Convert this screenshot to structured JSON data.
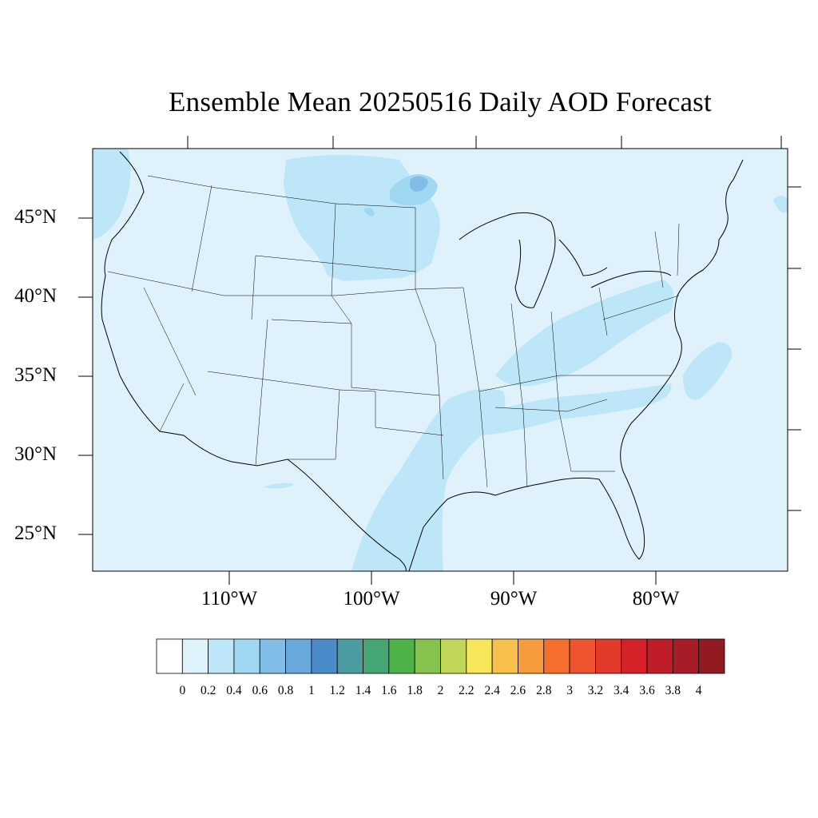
{
  "title": "Ensemble Mean 20250516 Daily AOD Forecast",
  "map": {
    "projection": "lambert-conformal",
    "region": "CONUS",
    "background_color": "#dff2fb",
    "lat_labels": [
      "45°N",
      "40°N",
      "35°N",
      "30°N",
      "25°N"
    ],
    "lon_labels": [
      "110°W",
      "100°W",
      "90°W",
      "80°W"
    ],
    "aod_features": [
      {
        "name": "northern-plains-plume",
        "level": "0.2-0.4"
      },
      {
        "name": "upper-midwest-peak",
        "level": "0.6-0.8"
      },
      {
        "name": "ohio-valley-band",
        "level": "0.2-0.4"
      },
      {
        "name": "south-central-band",
        "level": "0.2-0.4"
      },
      {
        "name": "carolina-offshore",
        "level": "0.2-0.4"
      },
      {
        "name": "pacific-northwest-coast",
        "level": "0.2-0.4"
      }
    ]
  },
  "colorbar": {
    "levels": [
      "0",
      "0.2",
      "0.4",
      "0.6",
      "0.8",
      "1",
      "1.2",
      "1.4",
      "1.6",
      "1.8",
      "2",
      "2.2",
      "2.4",
      "2.6",
      "2.8",
      "3",
      "3.2",
      "3.4",
      "3.6",
      "3.8",
      "4"
    ],
    "colors": [
      "#ffffff",
      "#def2fb",
      "#bde6f8",
      "#a0d8f4",
      "#81bde6",
      "#69a8dc",
      "#4a8cc9",
      "#4a9ca0",
      "#46a673",
      "#4db349",
      "#86c34e",
      "#c4d65a",
      "#f7e65a",
      "#f8bf4a",
      "#f79b3c",
      "#f56e2d",
      "#ee5430",
      "#e33a2b",
      "#d62129",
      "#bf1d28",
      "#a81c27",
      "#921a21"
    ]
  }
}
